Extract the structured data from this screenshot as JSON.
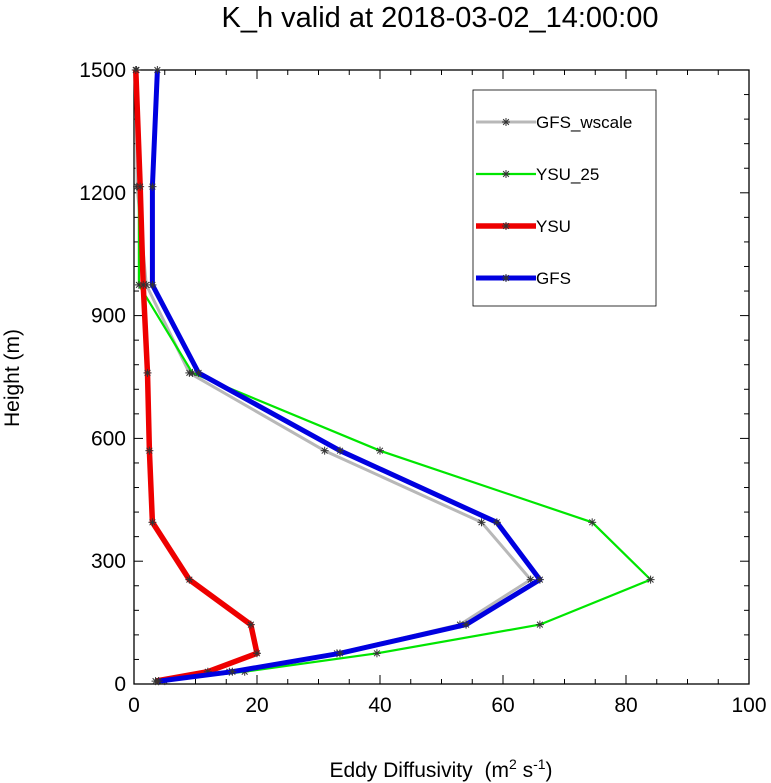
{
  "chart_data": {
    "type": "line",
    "title": "K_h valid at 2018-03-02_14:00:00",
    "xlabel": "Eddy Diffusivity",
    "xlabel_units": {
      "base": "(m",
      "sup1": "2",
      "mid": " s",
      "sup2": "-1",
      "end": ")"
    },
    "ylabel": "Height (m)",
    "xlim": [
      0,
      100
    ],
    "ylim": [
      0,
      1500
    ],
    "xticks": [
      0,
      20,
      40,
      60,
      80,
      100
    ],
    "yticks": [
      0,
      300,
      600,
      900,
      1200,
      1500
    ],
    "xtick_labels": [
      "0",
      "20",
      "40",
      "60",
      "80",
      "100"
    ],
    "ytick_labels": [
      "0",
      "300",
      "600",
      "900",
      "1200",
      "1500"
    ],
    "legend_position": "top-right",
    "series": [
      {
        "name": "GFS_wscale",
        "color": "#b8b8b8",
        "x": [
          5.0,
          15.5,
          33.0,
          53.0,
          64.5,
          56.5,
          31.0,
          9.0,
          2.0,
          0.5,
          0.3
        ],
        "y": [
          7,
          30,
          75,
          145,
          255,
          395,
          570,
          760,
          975,
          1215,
          1500
        ]
      },
      {
        "name": "YSU_25",
        "color": "#00e600",
        "x": [
          4.0,
          18.0,
          39.5,
          66.0,
          84.0,
          74.5,
          40.0,
          9.5,
          0.8,
          0.8,
          0.4
        ],
        "y": [
          7,
          30,
          75,
          145,
          255,
          395,
          570,
          760,
          975,
          1215,
          1500
        ]
      },
      {
        "name": "YSU",
        "color": "#ee0000",
        "x": [
          3.5,
          12.0,
          20.0,
          19.0,
          9.0,
          3.0,
          2.5,
          2.2,
          1.5,
          1.0,
          0.3
        ],
        "y": [
          7,
          30,
          75,
          145,
          255,
          395,
          570,
          760,
          975,
          1215,
          1500
        ]
      },
      {
        "name": "GFS",
        "color": "#0000e0",
        "x": [
          4.0,
          16.0,
          33.5,
          54.0,
          66.0,
          59.0,
          33.5,
          10.5,
          3.0,
          3.0,
          3.8
        ],
        "y": [
          7,
          30,
          75,
          145,
          255,
          395,
          570,
          760,
          975,
          1215,
          1500
        ]
      }
    ]
  }
}
